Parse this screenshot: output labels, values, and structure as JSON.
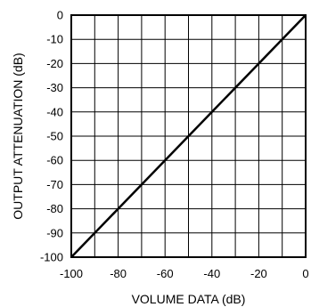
{
  "chart_data": {
    "type": "line",
    "title": "",
    "xlabel": "VOLUME DATA (dB)",
    "ylabel": "OUTPUT ATTENUATION (dB)",
    "xlim": [
      -100,
      0
    ],
    "ylim": [
      -100,
      0
    ],
    "x_ticks": [
      -100,
      -80,
      -60,
      -40,
      -20,
      0
    ],
    "y_ticks": [
      0,
      -10,
      -20,
      -30,
      -40,
      -50,
      -60,
      -70,
      -80,
      -90,
      -100
    ],
    "x_grid": [
      -100,
      -90,
      -80,
      -70,
      -60,
      -50,
      -40,
      -30,
      -20,
      -10,
      0
    ],
    "y_grid": [
      0,
      -10,
      -20,
      -30,
      -40,
      -50,
      -60,
      -70,
      -80,
      -90,
      -100
    ],
    "grid": true,
    "legend": "none",
    "series": [
      {
        "x": [
          -100,
          0
        ],
        "y": [
          -100,
          0
        ]
      }
    ],
    "colors": {
      "line": "#000000",
      "grid": "#000000",
      "frame": "#000000"
    }
  }
}
